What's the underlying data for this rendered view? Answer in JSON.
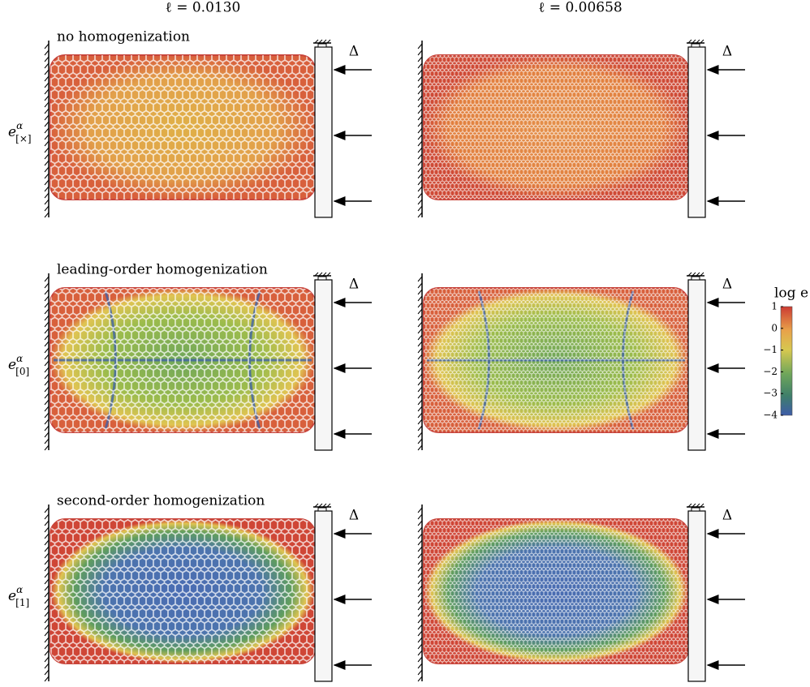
{
  "column_titles": [
    "ℓ = 0.0130",
    "ℓ = 0.00658"
  ],
  "rows": [
    {
      "caption": "no homogenization",
      "label": {
        "base": "e",
        "sup": "α",
        "sub": "[×]"
      }
    },
    {
      "caption": "leading-order homogenization",
      "label": {
        "base": "e",
        "sup": "α",
        "sub": "[0]"
      }
    },
    {
      "caption": "second-order homogenization",
      "label": {
        "base": "e",
        "sup": "α",
        "sub": "[1]"
      }
    }
  ],
  "load_label": "Δ",
  "colorbar": {
    "title": "log e",
    "range": [
      -4,
      1
    ],
    "ticks": [
      1,
      0,
      {
        "value": -1,
        "label": "−1"
      },
      {
        "value": -2,
        "label": "−2"
      },
      {
        "value": -3,
        "label": "−3"
      },
      {
        "value": -4,
        "label": "−4"
      }
    ]
  }
}
